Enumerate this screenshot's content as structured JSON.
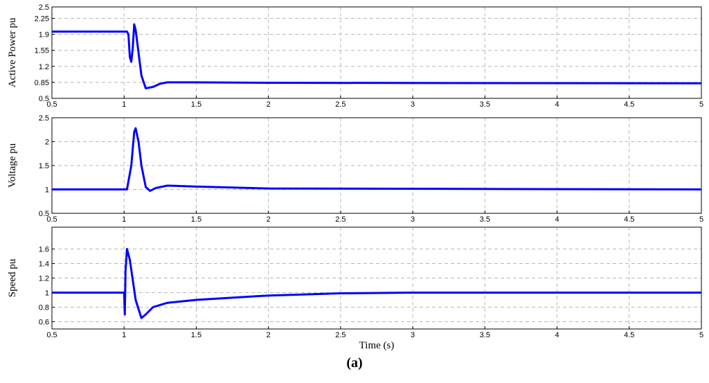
{
  "chart_data": [
    {
      "type": "line",
      "ylabel": "Active Power pu",
      "xlim": [
        0.5,
        5
      ],
      "xticks": [
        0.5,
        1,
        1.5,
        2,
        2.5,
        3,
        3.5,
        4,
        4.5,
        5
      ],
      "ylim": [
        0.5,
        2.5
      ],
      "yticks": [
        0.5,
        0.85,
        1.2,
        1.55,
        1.9,
        2.25,
        2.5
      ],
      "grid": true,
      "series": [
        {
          "name": null,
          "color": "#0000ff",
          "x": [
            0.5,
            1.02,
            1.03,
            1.04,
            1.05,
            1.06,
            1.07,
            1.08,
            1.1,
            1.12,
            1.15,
            1.2,
            1.25,
            1.3,
            1.5,
            2,
            5
          ],
          "values": [
            1.96,
            1.96,
            1.9,
            1.4,
            1.3,
            1.6,
            2.12,
            2.0,
            1.5,
            1.0,
            0.72,
            0.75,
            0.82,
            0.85,
            0.85,
            0.84,
            0.83
          ]
        }
      ]
    },
    {
      "type": "line",
      "ylabel": "Voltage pu",
      "xlim": [
        0.5,
        5
      ],
      "xticks": [
        0.5,
        1,
        1.5,
        2,
        2.5,
        3,
        3.5,
        4,
        4.5,
        5
      ],
      "ylim": [
        0.5,
        2.5
      ],
      "yticks": [
        0.5,
        1,
        1.5,
        2,
        2.5
      ],
      "grid": true,
      "series": [
        {
          "name": null,
          "color": "#0000ff",
          "x": [
            0.5,
            1.02,
            1.05,
            1.07,
            1.08,
            1.1,
            1.12,
            1.15,
            1.18,
            1.22,
            1.3,
            1.5,
            2,
            5
          ],
          "values": [
            1.0,
            1.0,
            1.5,
            2.2,
            2.28,
            2.0,
            1.5,
            1.05,
            0.97,
            1.03,
            1.08,
            1.06,
            1.02,
            1.0
          ]
        }
      ]
    },
    {
      "type": "line",
      "ylabel": "Speed pu",
      "xlabel": "Time (s)",
      "xlim": [
        0.5,
        5
      ],
      "xticks": [
        0.5,
        1,
        1.5,
        2,
        2.5,
        3,
        3.5,
        4,
        4.5,
        5
      ],
      "ylim": [
        0.5,
        1.9
      ],
      "yticks": [
        0.6,
        0.8,
        1,
        1.2,
        1.4,
        1.6
      ],
      "grid": true,
      "series": [
        {
          "name": null,
          "color": "#0000ff",
          "x": [
            0.5,
            1.0,
            1.005,
            1.01,
            1.02,
            1.04,
            1.08,
            1.12,
            1.15,
            1.2,
            1.3,
            1.5,
            2,
            2.5,
            3,
            5
          ],
          "values": [
            1.0,
            1.0,
            0.7,
            1.3,
            1.6,
            1.45,
            0.9,
            0.65,
            0.7,
            0.8,
            0.86,
            0.9,
            0.96,
            0.99,
            1.0,
            1.0
          ]
        }
      ]
    }
  ],
  "caption": "(a)"
}
